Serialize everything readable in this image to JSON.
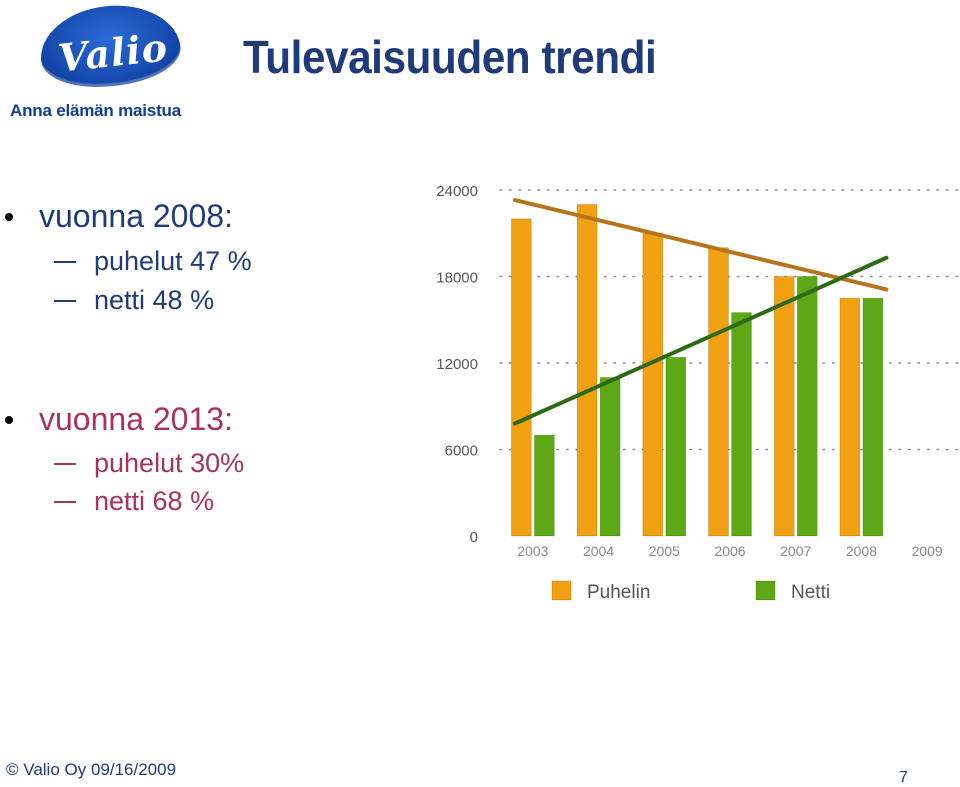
{
  "logo": {
    "wordmark": "Valio",
    "tagline": "Anna elämän maistua"
  },
  "title": "Tulevaisuuden trendi",
  "bullets": [
    {
      "heading": "vuonna 2008:",
      "items": [
        "puhelut 47 %",
        "netti 48 %"
      ],
      "color": "#1f3b7a"
    },
    {
      "heading": "vuonna 2013:",
      "items": [
        "puhelut 30%",
        "netti 68 %"
      ],
      "color": "#a8315f"
    }
  ],
  "chart_data": {
    "type": "bar",
    "categories": [
      "2003",
      "2004",
      "2005",
      "2006",
      "2007",
      "2008",
      "2009"
    ],
    "series": [
      {
        "name": "Puhelin",
        "color": "#f0a010",
        "values": [
          22000,
          23000,
          21000,
          20000,
          18000,
          16500,
          null
        ]
      },
      {
        "name": "Netti",
        "color": "#5ca815",
        "values": [
          7000,
          11000,
          12400,
          15500,
          18000,
          16500,
          null
        ]
      }
    ],
    "trendlines": [
      {
        "series": "Puhelin",
        "color": "#b8741a",
        "from": {
          "x": "2003",
          "y": 23300
        },
        "to": {
          "x": "2008",
          "y": 17100
        }
      },
      {
        "series": "Netti",
        "color": "#2d6a15",
        "from": {
          "x": "2003",
          "y": 7800
        },
        "to": {
          "x": "2008",
          "y": 19300
        }
      }
    ],
    "yticks": [
      "24000",
      "18000",
      "12000",
      "6000",
      "0"
    ],
    "ylim": [
      0,
      24000
    ],
    "legend_position": "bottom"
  },
  "footer": {
    "copyright": "© Valio Oy 09/16/2009",
    "page_number": "7"
  }
}
